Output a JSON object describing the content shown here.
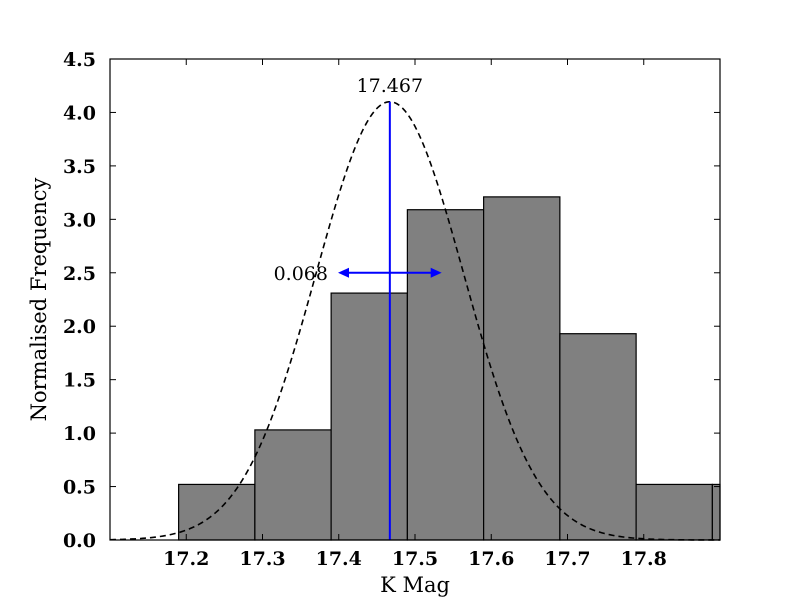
{
  "chart_data": {
    "type": "bar",
    "title": "",
    "xlabel": "K Mag",
    "ylabel": "Normalised Frequency",
    "xlim": [
      17.1,
      17.9
    ],
    "ylim": [
      0.0,
      4.5
    ],
    "xticks": [
      17.2,
      17.3,
      17.4,
      17.5,
      17.6,
      17.7,
      17.8
    ],
    "xtick_labels": [
      "17.2",
      "17.3",
      "17.4",
      "17.5",
      "17.6",
      "17.7",
      "17.8"
    ],
    "yticks": [
      0.0,
      0.5,
      1.0,
      1.5,
      2.0,
      2.5,
      3.0,
      3.5,
      4.0,
      4.5
    ],
    "ytick_labels": [
      "0.0",
      "0.5",
      "1.0",
      "1.5",
      "2.0",
      "2.5",
      "3.0",
      "3.5",
      "4.0",
      "4.5"
    ],
    "grid": false,
    "bins": [
      {
        "x0": 17.19,
        "x1": 17.29,
        "value": 0.52
      },
      {
        "x0": 17.29,
        "x1": 17.39,
        "value": 1.03
      },
      {
        "x0": 17.39,
        "x1": 17.49,
        "value": 2.31
      },
      {
        "x0": 17.49,
        "x1": 17.59,
        "value": 3.09
      },
      {
        "x0": 17.59,
        "x1": 17.69,
        "value": 3.21
      },
      {
        "x0": 17.69,
        "x1": 17.79,
        "value": 1.93
      },
      {
        "x0": 17.79,
        "x1": 17.89,
        "value": 0.52
      },
      {
        "x0": 17.89,
        "x1": 17.99,
        "value": 0.52
      }
    ],
    "bar_color": "#808080",
    "gaussian_fit": {
      "mean": 17.467,
      "sigma": 0.097,
      "peak": 4.1,
      "style": "dashed",
      "color": "#000000"
    },
    "mean_line": {
      "x": 17.467,
      "color": "#0000ff"
    },
    "annotations": {
      "mean_label": "17.467",
      "width_label": "0.068",
      "width_arrow": {
        "x0": 17.399,
        "x1": 17.535,
        "y": 2.5,
        "color": "#0000ff"
      }
    }
  }
}
